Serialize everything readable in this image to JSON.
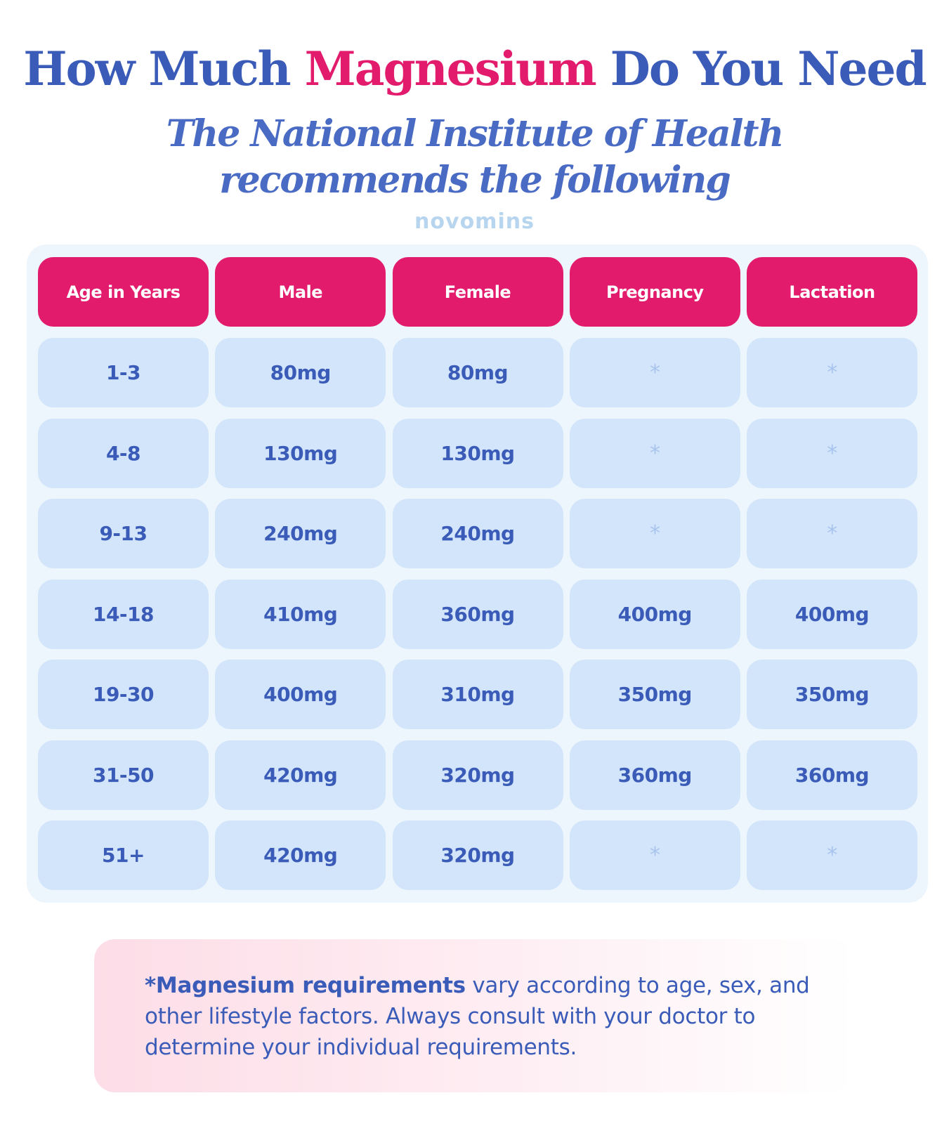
{
  "title": {
    "part1": "How Much ",
    "highlight": "Magnesium",
    "part2": " Do You Need"
  },
  "subtitle": {
    "line1": "The National Institute of Health",
    "line2": "recommends the following"
  },
  "brand": "novomins",
  "table": {
    "headers": [
      "Age in Years",
      "Male",
      "Female",
      "Pregnancy",
      "Lactation"
    ],
    "rows": [
      [
        "1-3",
        "80mg",
        "80mg",
        "*",
        "*"
      ],
      [
        "4-8",
        "130mg",
        "130mg",
        "*",
        "*"
      ],
      [
        "9-13",
        "240mg",
        "240mg",
        "*",
        "*"
      ],
      [
        "14-18",
        "410mg",
        "360mg",
        "400mg",
        "400mg"
      ],
      [
        "19-30",
        "400mg",
        "310mg",
        "350mg",
        "350mg"
      ],
      [
        "31-50",
        "420mg",
        "320mg",
        "360mg",
        "360mg"
      ],
      [
        "51+",
        "420mg",
        "320mg",
        "*",
        "*"
      ]
    ]
  },
  "note": {
    "bold": "*Magnesium requirements",
    "text": " vary according to age, sex, and other lifestyle factors. Always consult with your doctor to determine your individual requirements."
  },
  "colors": {
    "primary_blue": "#3a5cb8",
    "accent_pink": "#e21b6c",
    "cell_bg": "#d2e5fa",
    "panel_bg": "#edf5fd"
  }
}
